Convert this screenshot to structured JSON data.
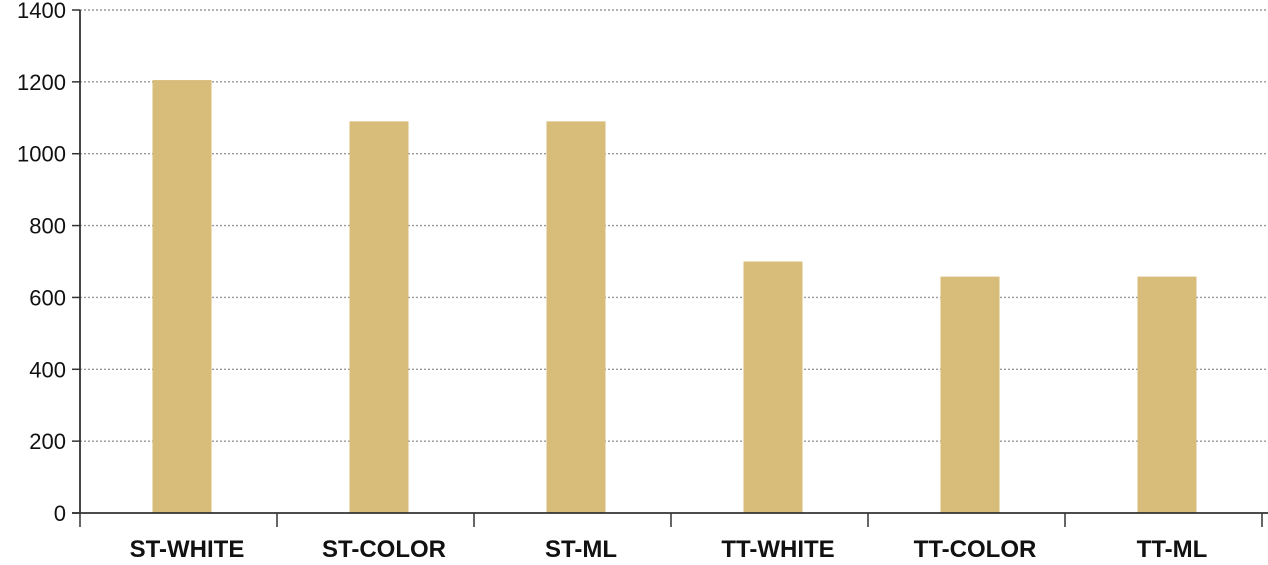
{
  "chart_data": {
    "type": "bar",
    "categories": [
      "ST-WHITE",
      "ST-COLOR",
      "ST-ML",
      "TT-WHITE",
      "TT-COLOR",
      "TT-ML"
    ],
    "values": [
      1205,
      1090,
      1090,
      700,
      658,
      658
    ],
    "title": "",
    "xlabel": "",
    "ylabel": "",
    "ylim": [
      0,
      1400
    ],
    "yticks": [
      0,
      200,
      400,
      600,
      800,
      1000,
      1200,
      1400
    ],
    "grid": true,
    "legend": "none",
    "colors": {
      "bar": "#D8BC7A",
      "grid": "#9a9a9a",
      "axis": "#333333",
      "text": "#111111"
    }
  }
}
